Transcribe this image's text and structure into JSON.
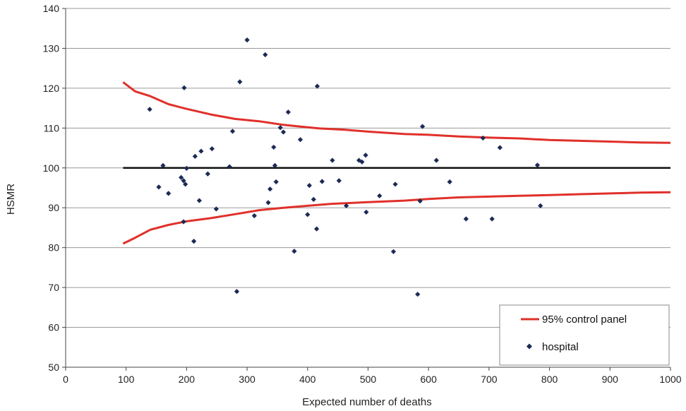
{
  "chart_data": {
    "type": "scatter",
    "xlabel": "Expected number of deaths",
    "ylabel": "HSMR",
    "xlim": [
      0,
      1000
    ],
    "ylim": [
      50,
      140
    ],
    "x_ticks": [
      0,
      100,
      200,
      300,
      400,
      500,
      600,
      700,
      800,
      900,
      1000
    ],
    "y_ticks": [
      50,
      60,
      70,
      80,
      90,
      100,
      110,
      120,
      130,
      140
    ],
    "grid": "horizontal",
    "legend_position": "bottom-right",
    "reference_line": {
      "y": 100,
      "x_range": [
        95,
        1000
      ],
      "color": "#111111"
    },
    "control_limits": {
      "name": "95% control panel",
      "color": "#e0302a",
      "upper": [
        [
          95,
          121.5
        ],
        [
          115,
          119.2
        ],
        [
          140,
          118
        ],
        [
          170,
          116
        ],
        [
          200,
          114.8
        ],
        [
          240,
          113.4
        ],
        [
          280,
          112.3
        ],
        [
          320,
          111.7
        ],
        [
          360,
          110.8
        ],
        [
          400,
          110.2
        ],
        [
          420,
          109.9
        ],
        [
          460,
          109.6
        ],
        [
          500,
          109.1
        ],
        [
          560,
          108.5
        ],
        [
          600,
          108.3
        ],
        [
          650,
          107.9
        ],
        [
          700,
          107.6
        ],
        [
          750,
          107.4
        ],
        [
          800,
          107
        ],
        [
          850,
          106.8
        ],
        [
          900,
          106.6
        ],
        [
          950,
          106.4
        ],
        [
          1000,
          106.3
        ]
      ],
      "lower": [
        [
          95,
          81
        ],
        [
          115,
          82.5
        ],
        [
          140,
          84.5
        ],
        [
          170,
          85.7
        ],
        [
          200,
          86.6
        ],
        [
          240,
          87.4
        ],
        [
          280,
          88.4
        ],
        [
          320,
          89.4
        ],
        [
          360,
          90
        ],
        [
          400,
          90.5
        ],
        [
          440,
          91
        ],
        [
          500,
          91.4
        ],
        [
          560,
          91.8
        ],
        [
          600,
          92.2
        ],
        [
          650,
          92.6
        ],
        [
          700,
          92.8
        ],
        [
          750,
          93
        ],
        [
          800,
          93.2
        ],
        [
          850,
          93.4
        ],
        [
          900,
          93.6
        ],
        [
          950,
          93.8
        ],
        [
          1000,
          93.9
        ]
      ]
    },
    "series": [
      {
        "name": "hospital",
        "color": "#1c2a55",
        "points": [
          [
            139,
            114.7
          ],
          [
            154,
            95.2
          ],
          [
            161,
            100.6
          ],
          [
            170,
            93.6
          ],
          [
            191,
            97.6
          ],
          [
            195,
            96.8
          ],
          [
            195,
            86.5
          ],
          [
            196,
            120.1
          ],
          [
            198,
            95.9
          ],
          [
            200,
            99.9
          ],
          [
            212,
            81.6
          ],
          [
            214,
            102.9
          ],
          [
            221,
            91.8
          ],
          [
            224,
            104.2
          ],
          [
            235,
            98.5
          ],
          [
            242,
            104.8
          ],
          [
            249,
            89.7
          ],
          [
            271,
            100.3
          ],
          [
            276,
            109.2
          ],
          [
            283,
            69
          ],
          [
            288,
            121.6
          ],
          [
            300,
            132.1
          ],
          [
            312,
            88
          ],
          [
            330,
            128.4
          ],
          [
            335,
            91.3
          ],
          [
            338,
            94.7
          ],
          [
            344,
            105.2
          ],
          [
            346,
            100.6
          ],
          [
            348,
            96.5
          ],
          [
            355,
            110.1
          ],
          [
            360,
            109
          ],
          [
            368,
            114
          ],
          [
            378,
            79.1
          ],
          [
            388,
            107.1
          ],
          [
            400,
            88.3
          ],
          [
            403,
            95.6
          ],
          [
            410,
            92.1
          ],
          [
            415,
            84.7
          ],
          [
            416,
            120.5
          ],
          [
            424,
            96.6
          ],
          [
            441,
            101.9
          ],
          [
            452,
            96.8
          ],
          [
            464,
            90.5
          ],
          [
            485,
            101.9
          ],
          [
            490,
            101.5
          ],
          [
            496,
            103.2
          ],
          [
            497,
            88.9
          ],
          [
            519,
            93
          ],
          [
            542,
            79
          ],
          [
            545,
            95.9
          ],
          [
            582,
            68.3
          ],
          [
            586,
            91.7
          ],
          [
            590,
            110.4
          ],
          [
            613,
            101.9
          ],
          [
            635,
            96.5
          ],
          [
            662,
            87.2
          ],
          [
            690,
            107.5
          ],
          [
            705,
            87.2
          ],
          [
            718,
            105.1
          ],
          [
            780,
            100.7
          ],
          [
            785,
            90.5
          ]
        ]
      }
    ],
    "legend": [
      {
        "label": "95% control panel",
        "kind": "line"
      },
      {
        "label": "hospital",
        "kind": "marker"
      }
    ]
  }
}
